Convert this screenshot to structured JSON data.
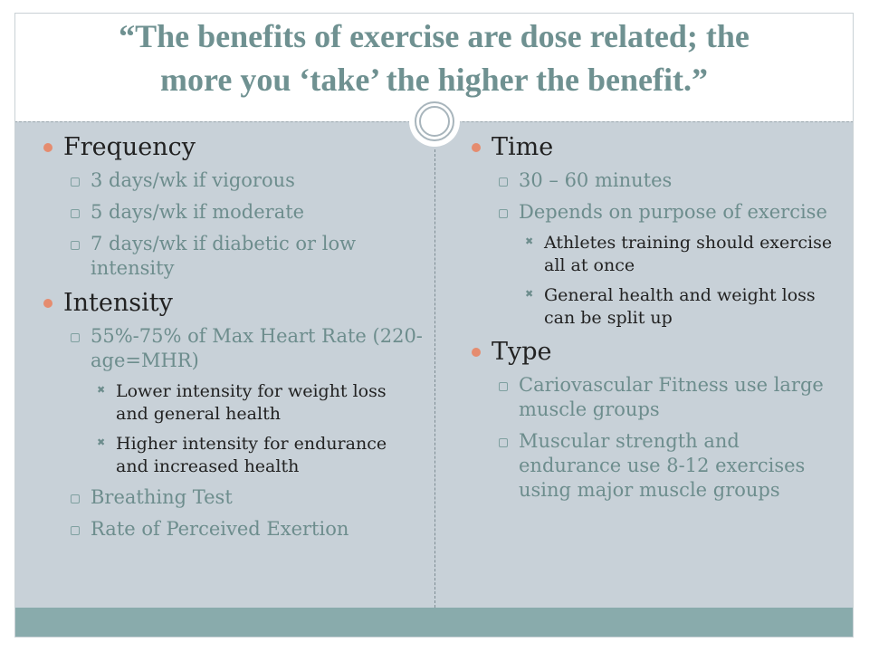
{
  "slide": {
    "title_line1": "“The benefits of exercise are dose related; the",
    "title_line2": "more you ‘take’ the higher the benefit.”",
    "colors": {
      "accent": "#e58c6f",
      "title": "#6f9191",
      "content_bg": "#c8d1d8",
      "footer": "#89abac"
    },
    "left": {
      "frequency": {
        "heading": "Frequency",
        "items": [
          "3 days/wk if vigorous",
          "5 days/wk if moderate",
          "7 days/wk if diabetic or low intensity"
        ]
      },
      "intensity": {
        "heading": "Intensity",
        "item1": "55%-75% of Max Heart Rate (220-age=MHR)",
        "sub": [
          "Lower intensity for weight loss and general health",
          "Higher intensity for endurance and increased health"
        ],
        "item2": "Breathing Test",
        "item3": "Rate of Perceived Exertion"
      }
    },
    "right": {
      "time": {
        "heading": "Time",
        "item1": "30 – 60 minutes",
        "item2": "Depends on purpose of exercise",
        "sub": [
          "Athletes training should exercise all at once",
          "General health and weight loss can be split up"
        ]
      },
      "type": {
        "heading": "Type",
        "items": [
          "Cariovascular Fitness use large muscle groups",
          "Muscular strength and endurance use 8-12 exercises using major muscle groups"
        ]
      }
    }
  }
}
